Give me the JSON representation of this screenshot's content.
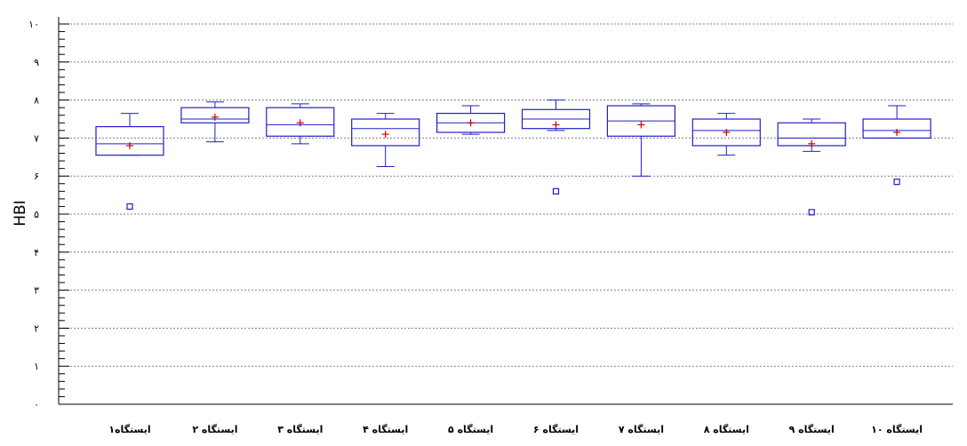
{
  "chart_data": {
    "type": "box",
    "ylabel": "HBI",
    "xlabel": "",
    "ylim": [
      0,
      10
    ],
    "y_ticks": [
      0,
      1,
      2,
      3,
      4,
      5,
      6,
      7,
      8,
      9,
      10
    ],
    "y_tick_labels": [
      "٠",
      "١",
      "٢",
      "٣",
      "۴",
      "۵",
      "۶",
      "٧",
      "٨",
      "٩",
      "١٠"
    ],
    "grid": "horizontal dotted",
    "colors": {
      "box": "#2020c8",
      "mean_marker": "#cc0000",
      "axis": "#000000",
      "grid": "#808080"
    },
    "categories": [
      "ایستگاه١",
      "ایستگاه ٢",
      "ایستگاه ٣",
      "ایستگاه ۴",
      "ایستگاه ۵",
      "ایستگاه ۶",
      "ایستگاه ٧",
      "ایستگاه ٨",
      "ایستگاه ٩",
      "ایستگاه ١٠"
    ],
    "boxes": [
      {
        "whisker_low": 6.55,
        "q1": 6.55,
        "median": 6.85,
        "q3": 7.3,
        "whisker_high": 7.65,
        "mean": 6.8,
        "outliers": [
          5.2
        ]
      },
      {
        "whisker_low": 6.9,
        "q1": 7.4,
        "median": 7.5,
        "q3": 7.8,
        "whisker_high": 7.95,
        "mean": 7.55,
        "outliers": []
      },
      {
        "whisker_low": 6.85,
        "q1": 7.05,
        "median": 7.35,
        "q3": 7.8,
        "whisker_high": 7.9,
        "mean": 7.4,
        "outliers": []
      },
      {
        "whisker_low": 6.25,
        "q1": 6.8,
        "median": 7.25,
        "q3": 7.5,
        "whisker_high": 7.65,
        "mean": 7.1,
        "outliers": []
      },
      {
        "whisker_low": 7.1,
        "q1": 7.15,
        "median": 7.4,
        "q3": 7.65,
        "whisker_high": 7.85,
        "mean": 7.4,
        "outliers": []
      },
      {
        "whisker_low": 7.2,
        "q1": 7.25,
        "median": 7.5,
        "q3": 7.75,
        "whisker_high": 8.0,
        "mean": 7.35,
        "outliers": [
          5.6
        ]
      },
      {
        "whisker_low": 6.0,
        "q1": 7.05,
        "median": 7.45,
        "q3": 7.85,
        "whisker_high": 7.9,
        "mean": 7.35,
        "outliers": []
      },
      {
        "whisker_low": 6.55,
        "q1": 6.8,
        "median": 7.2,
        "q3": 7.5,
        "whisker_high": 7.65,
        "mean": 7.15,
        "outliers": []
      },
      {
        "whisker_low": 6.65,
        "q1": 6.8,
        "median": 7.0,
        "q3": 7.4,
        "whisker_high": 7.5,
        "mean": 6.85,
        "outliers": [
          5.05
        ]
      },
      {
        "whisker_low": 7.0,
        "q1": 7.0,
        "median": 7.2,
        "q3": 7.5,
        "whisker_high": 7.85,
        "mean": 7.15,
        "outliers": [
          5.85
        ]
      }
    ]
  }
}
